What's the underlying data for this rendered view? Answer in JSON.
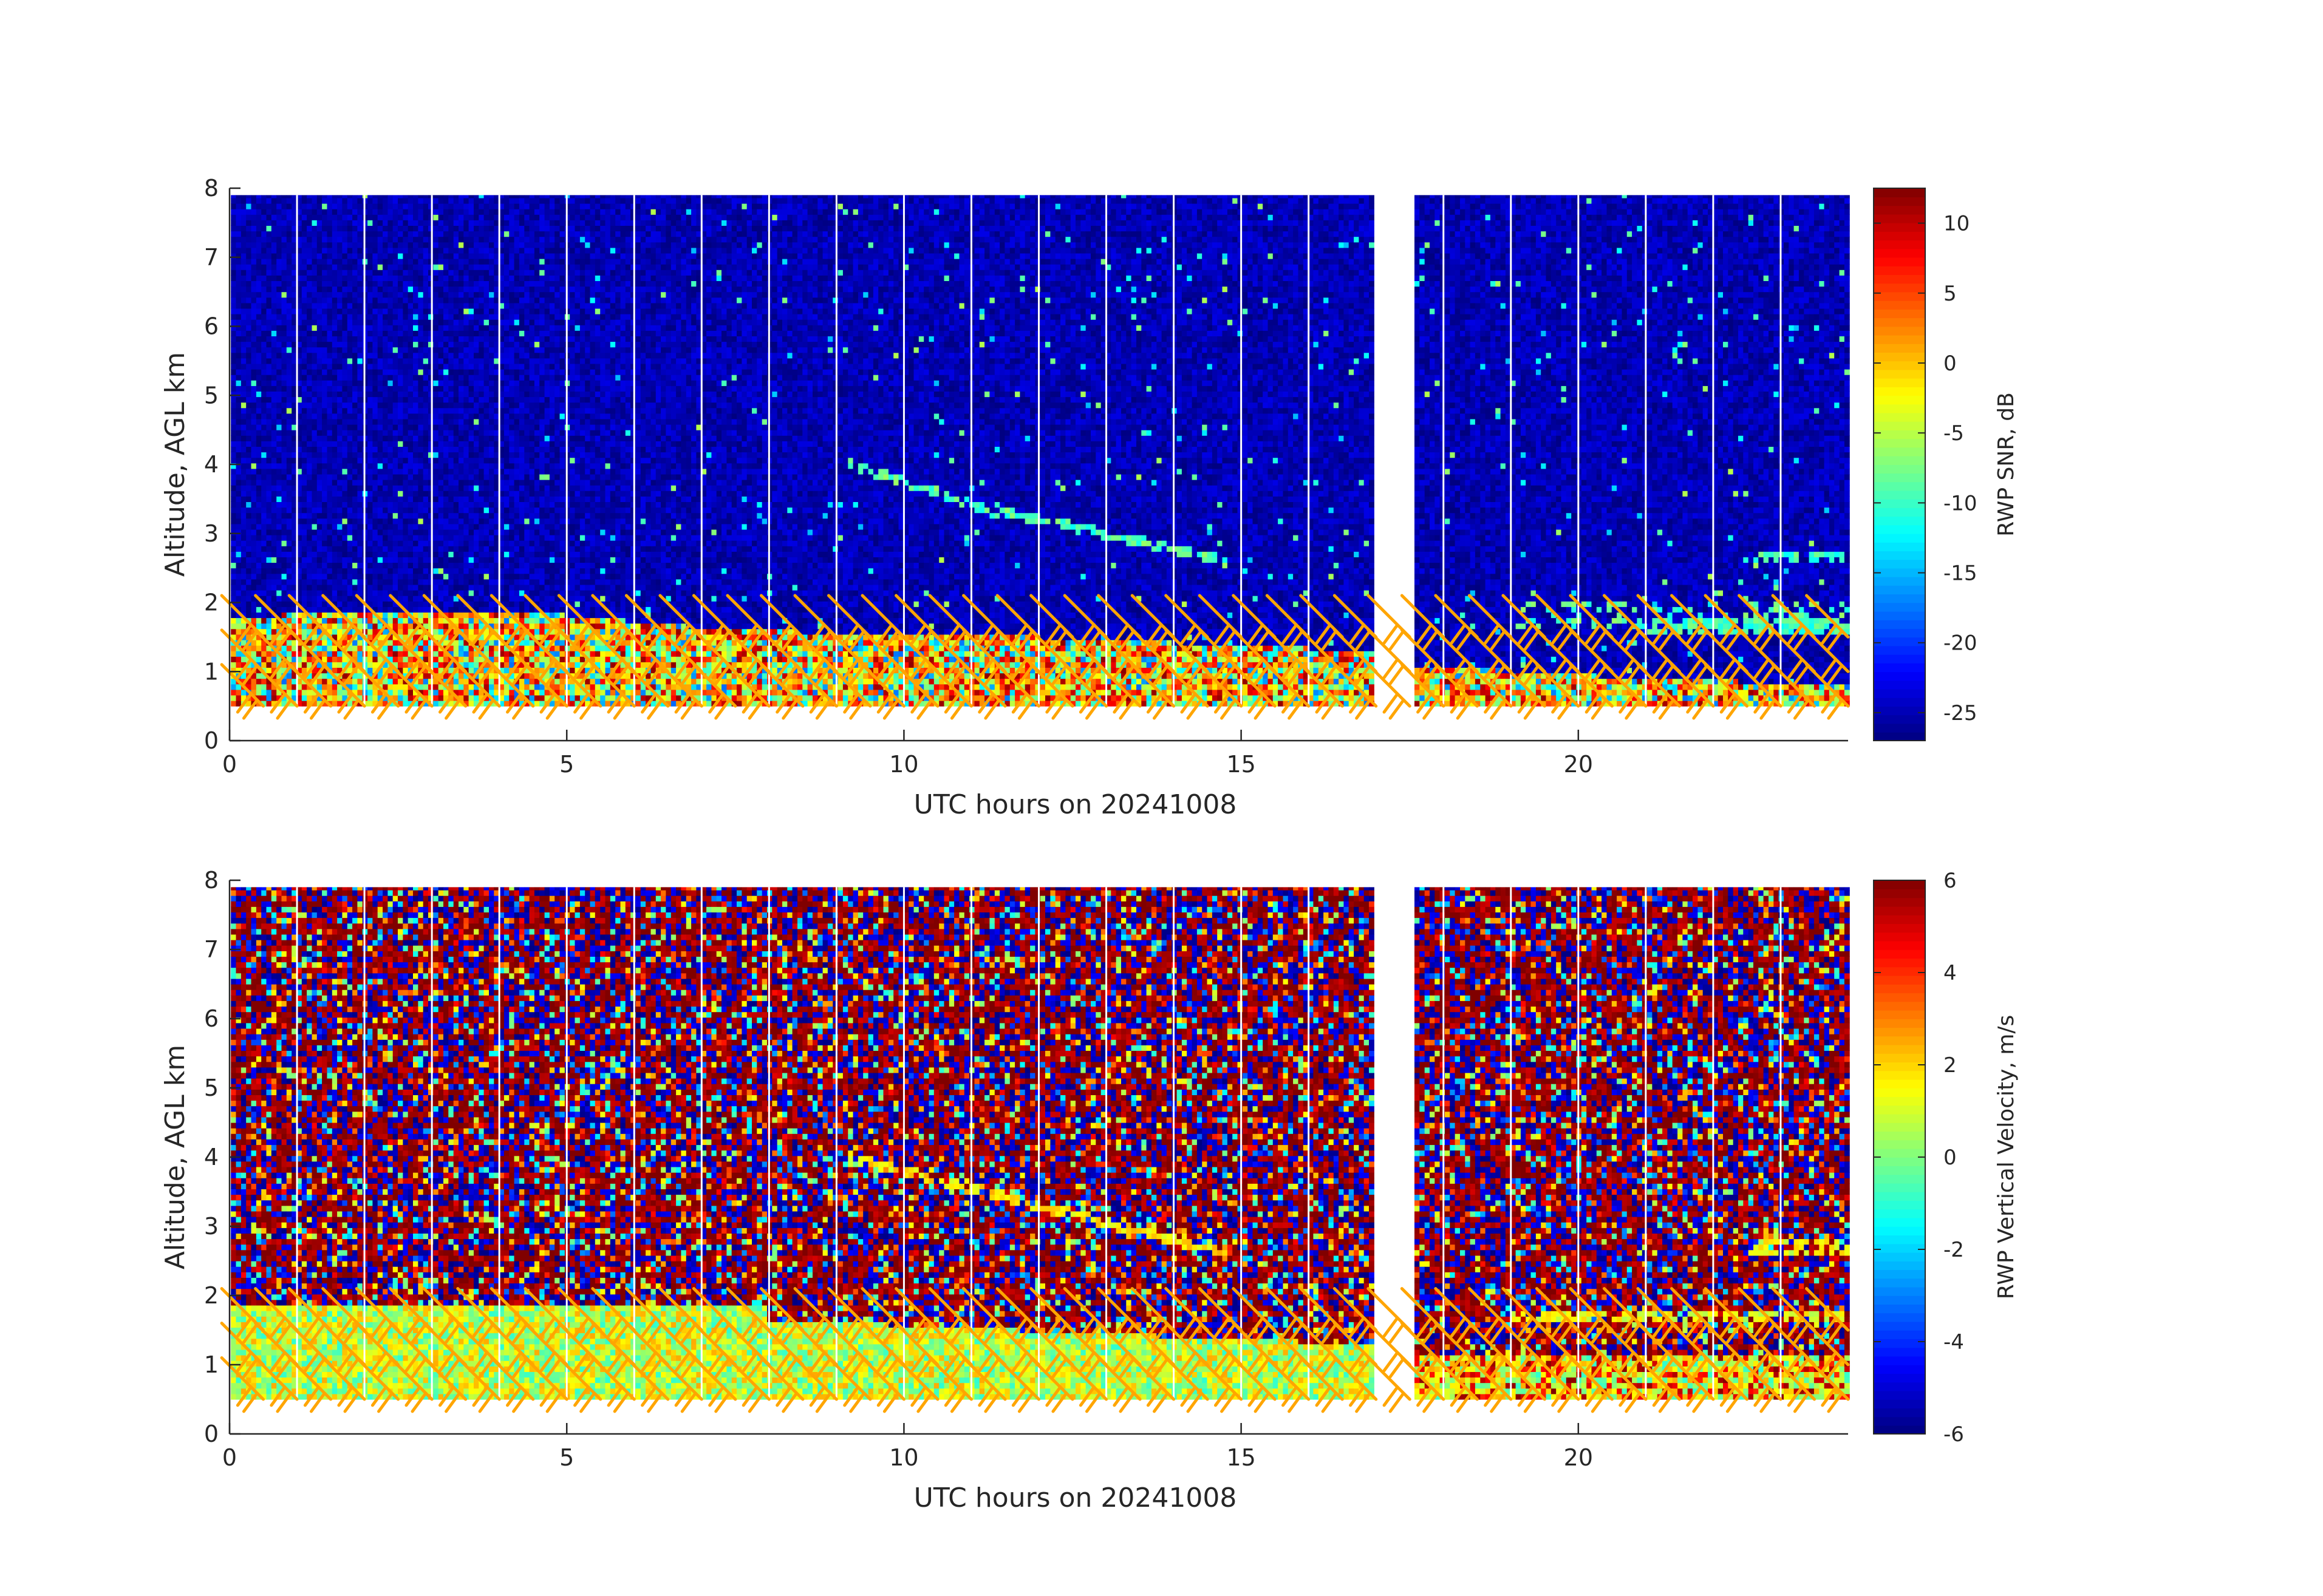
{
  "chart_data": [
    {
      "type": "heatmap",
      "title": "",
      "xlabel": "UTC hours on 20241008",
      "ylabel": "Altitude, AGL km",
      "xlim": [
        0,
        24
      ],
      "ylim": [
        0,
        8
      ],
      "xticks": [
        0,
        5,
        10,
        15,
        20
      ],
      "yticks": [
        0,
        1,
        2,
        3,
        4,
        5,
        6,
        7,
        8
      ],
      "data_gap_hours": [
        17.0,
        17.5
      ],
      "valid_altitude_km": [
        0.5,
        7.9
      ],
      "colormap": "jet",
      "colorbar": {
        "label": "RWP SNR, dB",
        "clim": [
          -27,
          12.5
        ],
        "ticks": [
          10,
          5,
          0,
          -5,
          -10,
          -15,
          -20,
          -25
        ]
      },
      "features": {
        "background_snr_db": -25,
        "boundary_layer_top_km": [
          {
            "t": 0,
            "z": 1.8
          },
          {
            "t": 4,
            "z": 1.9
          },
          {
            "t": 7.5,
            "z": 1.6
          },
          {
            "t": 12,
            "z": 1.5
          },
          {
            "t": 17,
            "z": 1.3
          },
          {
            "t": 17.5,
            "z": 1.1
          },
          {
            "t": 20,
            "z": 0.95
          },
          {
            "t": 24,
            "z": 0.8
          }
        ],
        "cloud_layer": [
          {
            "t": 9.2,
            "z": 4.0
          },
          {
            "t": 10.2,
            "z": 3.7
          },
          {
            "t": 11.2,
            "z": 3.35
          },
          {
            "t": 12.5,
            "z": 3.1
          },
          {
            "t": 14.8,
            "z": 2.6
          }
        ]
      },
      "wind_barbs": {
        "color": "#ffa500",
        "times_hours": [
          0.5,
          1,
          1.5,
          2,
          2.5,
          3,
          3.5,
          4,
          4.5,
          5,
          5.5,
          6,
          6.5,
          7,
          7.5,
          8,
          8.5,
          9,
          9.5,
          10,
          10.5,
          11,
          11.5,
          12,
          12.5,
          13,
          13.5,
          14,
          14.5,
          15,
          15.5,
          16,
          16.5,
          17,
          17.5,
          18,
          18.5,
          19,
          19.5,
          20,
          20.5,
          21,
          21.5,
          22,
          22.5,
          23,
          23.5,
          24
        ],
        "altitudes_km": [
          0.5,
          1.0,
          1.5
        ]
      }
    },
    {
      "type": "heatmap",
      "title": "",
      "xlabel": "UTC hours on 20241008",
      "ylabel": "Altitude, AGL km",
      "xlim": [
        0,
        24
      ],
      "ylim": [
        0,
        8
      ],
      "xticks": [
        0,
        5,
        10,
        15,
        20
      ],
      "yticks": [
        0,
        1,
        2,
        3,
        4,
        5,
        6,
        7,
        8
      ],
      "data_gap_hours": [
        17.0,
        17.5
      ],
      "valid_altitude_km": [
        0.5,
        7.9
      ],
      "colormap": "jet",
      "colorbar": {
        "label": "RWP Vertical Velocity, m/s",
        "clim": [
          -6,
          6
        ],
        "ticks": [
          6,
          4,
          2,
          0,
          -2,
          -4,
          -6
        ]
      },
      "features": {
        "boundary_layer_velocity_ms": 0.5,
        "upper_noise_range_ms": [
          -6,
          6
        ]
      },
      "wind_barbs": {
        "color": "#ffa500",
        "times_hours": [
          0.5,
          1,
          1.5,
          2,
          2.5,
          3,
          3.5,
          4,
          4.5,
          5,
          5.5,
          6,
          6.5,
          7,
          7.5,
          8,
          8.5,
          9,
          9.5,
          10,
          10.5,
          11,
          11.5,
          12,
          12.5,
          13,
          13.5,
          14,
          14.5,
          15,
          15.5,
          16,
          16.5,
          17,
          17.5,
          18,
          18.5,
          19,
          19.5,
          20,
          20.5,
          21,
          21.5,
          22,
          22.5,
          23,
          23.5,
          24
        ],
        "altitudes_km": [
          0.5,
          1.0,
          1.5
        ]
      }
    }
  ]
}
